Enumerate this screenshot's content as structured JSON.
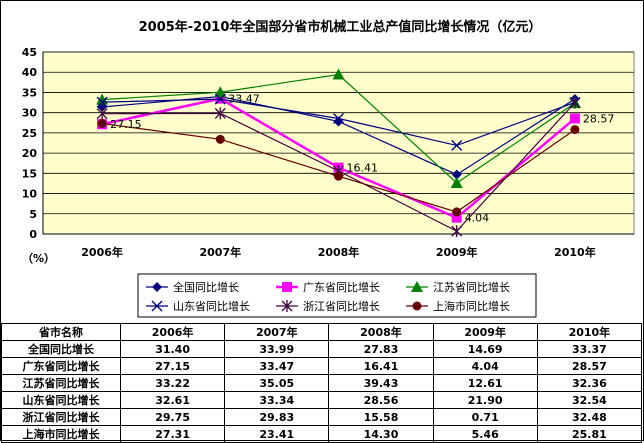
{
  "chart_data": {
    "type": "line",
    "title": "2005年-2010年全国部分省市机械工业总产值同比增长情况（亿元）",
    "ylabel": "（%）",
    "categories": [
      "2006年",
      "2007年",
      "2008年",
      "2009年",
      "2010年"
    ],
    "y_ticks": [
      "0",
      "5",
      "10",
      "15",
      "20",
      "25",
      "30",
      "35",
      "40",
      "45"
    ],
    "ylim": [
      0,
      45
    ],
    "grid": true,
    "legend_position": "bottom",
    "series": [
      {
        "name": "全国同比增长",
        "values": [
          31.4,
          33.99,
          27.83,
          14.69,
          33.37
        ],
        "color": "#000080",
        "marker": "diamond"
      },
      {
        "name": "广东省同比增长",
        "values": [
          27.15,
          33.47,
          16.41,
          4.04,
          28.57
        ],
        "color": "#ff00ff",
        "marker": "square"
      },
      {
        "name": "江苏省同比增长",
        "values": [
          33.22,
          35.05,
          39.43,
          12.61,
          32.36
        ],
        "color": "#008000",
        "marker": "triangle"
      },
      {
        "name": "山东省同比增长",
        "values": [
          32.61,
          33.34,
          28.56,
          21.9,
          32.54
        ],
        "color": "#000080",
        "marker": "x"
      },
      {
        "name": "浙江省同比增长",
        "values": [
          29.75,
          29.83,
          15.58,
          0.71,
          32.48
        ],
        "color": "#400040",
        "marker": "star"
      },
      {
        "name": "上海市同比增长",
        "values": [
          27.31,
          23.41,
          14.3,
          5.46,
          25.81
        ],
        "color": "#660000",
        "marker": "circle"
      }
    ],
    "data_labels": [
      {
        "series": 1,
        "index": 0,
        "text": "27.15"
      },
      {
        "series": 1,
        "index": 1,
        "text": "33.47"
      },
      {
        "series": 1,
        "index": 2,
        "text": "16.41"
      },
      {
        "series": 1,
        "index": 3,
        "text": "4.04"
      },
      {
        "series": 1,
        "index": 4,
        "text": "28.57"
      }
    ],
    "colors": {
      "plot_background": "#ffffcc",
      "gridline": "#000000"
    }
  },
  "table": {
    "header": [
      "省市名称",
      "2006年",
      "2007年",
      "2008年",
      "2009年",
      "2010年"
    ],
    "rows": [
      [
        "全国同比增长",
        "31.40",
        "33.99",
        "27.83",
        "14.69",
        "33.37"
      ],
      [
        "广东省同比增长",
        "27.15",
        "33.47",
        "16.41",
        "4.04",
        "28.57"
      ],
      [
        "江苏省同比增长",
        "33.22",
        "35.05",
        "39.43",
        "12.61",
        "32.36"
      ],
      [
        "山东省同比增长",
        "32.61",
        "33.34",
        "28.56",
        "21.90",
        "32.54"
      ],
      [
        "浙江省同比增长",
        "29.75",
        "29.83",
        "15.58",
        "0.71",
        "32.48"
      ],
      [
        "上海市同比增长",
        "27.31",
        "23.41",
        "14.30",
        "5.46",
        "25.81"
      ]
    ]
  }
}
